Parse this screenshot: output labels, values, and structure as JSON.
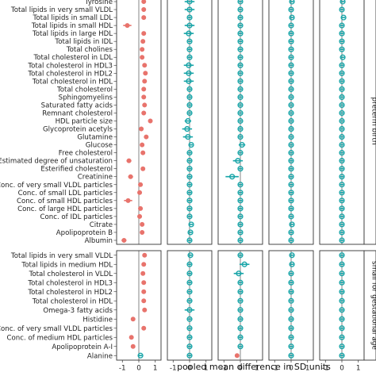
{
  "chart_data": {
    "type": "scatter",
    "xlabel": "pooled mean difference in SD units",
    "panel_xticks": [
      [
        "-1",
        "0",
        "1"
      ],
      [
        "-1",
        "0",
        "1"
      ],
      [
        "-1",
        "0",
        "1"
      ],
      [
        "-1",
        "0",
        "1"
      ],
      [
        "-1",
        "0",
        "1"
      ]
    ],
    "xlim": [
      -1.35,
      1.35
    ],
    "rows": [
      {
        "name": "preterm birth",
        "labels": [
          "Tyrosine",
          "Total lipids in very small VLDL",
          "Total lipids in small LDL",
          "Total lipids in small HDL",
          "Total lipids in large HDL",
          "Total lipids in IDL",
          "Total cholines",
          "Total cholesterol in LDL",
          "Total cholesterol in HDL3",
          "Total cholesterol in HDL2",
          "Total cholesterol in HDL",
          "Total cholesterol",
          "Sphingomyelins",
          "Saturated fatty acids",
          "Remnant cholesterol",
          "HDL particle size",
          "Glycoprotein acetyls",
          "Glutamine",
          "Glucose",
          "Free cholesterol",
          "Estimated degree of unsaturation",
          "Esterified cholesterol",
          "Creatinine",
          "Conc. of very small VLDL particles",
          "Conc. of small LDL particles",
          "Conc. of small HDL particles",
          "Conc. of large HDL particles",
          "Conc. of IDL particles",
          "Citrate",
          "Apolipoprotein B",
          "Albumin"
        ],
        "panel1": [
          0.3,
          0.3,
          0.3,
          -0.7,
          0.3,
          0.25,
          0.2,
          0.2,
          0.35,
          0.4,
          0.35,
          0.3,
          0.3,
          0.35,
          0.3,
          0.7,
          0.15,
          0.45,
          0.2,
          0.25,
          -0.6,
          0.25,
          -0.5,
          0.1,
          0.05,
          -0.65,
          0.1,
          0.05,
          0.2,
          0.2,
          -0.9
        ],
        "panel1_ci": [
          0.1,
          0.1,
          0.1,
          0.25,
          0.1,
          0.1,
          0.1,
          0.1,
          0.1,
          0.1,
          0.1,
          0.1,
          0.1,
          0.1,
          0.1,
          0.1,
          0.1,
          0.12,
          0.1,
          0.1,
          0.15,
          0.1,
          0.15,
          0.1,
          0.1,
          0.25,
          0.1,
          0.1,
          0.1,
          0.1,
          0.15
        ],
        "panel2": [
          0.0,
          0.0,
          0.0,
          0.0,
          -0.05,
          0.0,
          0.0,
          0.0,
          -0.05,
          -0.05,
          -0.05,
          0.0,
          0.0,
          0.0,
          0.0,
          -0.1,
          -0.15,
          -0.1,
          0.1,
          0.0,
          0.0,
          0.0,
          0.0,
          0.0,
          0.0,
          0.0,
          0.0,
          0.0,
          0.1,
          0.05,
          0.0
        ],
        "panel2_ci": [
          0.3,
          0.3,
          0.1,
          0.3,
          0.3,
          0.1,
          0.1,
          0.1,
          0.3,
          0.3,
          0.3,
          0.1,
          0.1,
          0.1,
          0.1,
          0.2,
          0.3,
          0.3,
          0.1,
          0.1,
          0.1,
          0.1,
          0.1,
          0.1,
          0.1,
          0.1,
          0.1,
          0.1,
          0.1,
          0.1,
          0.1
        ],
        "panel3": [
          0.0,
          0.0,
          0.0,
          0.0,
          0.0,
          0.0,
          0.0,
          0.0,
          0.0,
          0.0,
          0.0,
          0.0,
          0.0,
          0.0,
          0.0,
          0.0,
          0.0,
          0.0,
          0.1,
          0.0,
          -0.15,
          0.0,
          -0.5,
          0.0,
          0.0,
          0.0,
          0.0,
          0.0,
          0.0,
          0.0,
          0.0
        ],
        "panel3_ci": [
          0.1,
          0.1,
          0.1,
          0.1,
          0.1,
          0.1,
          0.1,
          0.1,
          0.1,
          0.1,
          0.1,
          0.1,
          0.1,
          0.1,
          0.1,
          0.1,
          0.1,
          0.1,
          0.2,
          0.1,
          0.3,
          0.1,
          0.4,
          0.1,
          0.1,
          0.1,
          0.1,
          0.1,
          0.1,
          0.1,
          0.1
        ],
        "panel4": [
          0.05,
          0.0,
          0.05,
          0.0,
          0.0,
          0.0,
          0.0,
          0.0,
          0.0,
          0.0,
          0.0,
          0.0,
          0.0,
          0.0,
          0.0,
          0.0,
          0.0,
          0.0,
          0.0,
          0.0,
          0.0,
          0.0,
          0.0,
          0.0,
          0.0,
          0.0,
          0.0,
          0.0,
          0.05,
          0.0,
          0.0
        ],
        "panel4_ci": [
          0.1,
          0.1,
          0.1,
          0.1,
          0.1,
          0.1,
          0.1,
          0.1,
          0.1,
          0.1,
          0.1,
          0.1,
          0.1,
          0.1,
          0.1,
          0.1,
          0.1,
          0.1,
          0.1,
          0.1,
          0.1,
          0.1,
          0.1,
          0.1,
          0.1,
          0.1,
          0.1,
          0.1,
          0.1,
          0.1,
          0.1
        ],
        "panel5": [
          0.05,
          0.0,
          0.1,
          0.0,
          0.0,
          0.0,
          0.0,
          0.05,
          0.0,
          0.0,
          0.0,
          0.0,
          0.0,
          0.0,
          0.0,
          0.0,
          0.0,
          0.0,
          0.0,
          0.0,
          0.0,
          0.0,
          0.0,
          0.0,
          0.0,
          0.0,
          0.0,
          0.0,
          0.0,
          0.0,
          0.0
        ],
        "panel5_ci": [
          0.1,
          0.1,
          0.1,
          0.1,
          0.1,
          0.1,
          0.1,
          0.1,
          0.1,
          0.1,
          0.1,
          0.1,
          0.1,
          0.1,
          0.1,
          0.1,
          0.1,
          0.1,
          0.1,
          0.1,
          0.1,
          0.1,
          0.1,
          0.1,
          0.1,
          0.1,
          0.1,
          0.1,
          0.1,
          0.1,
          0.1
        ]
      },
      {
        "name": "small for gestational age",
        "labels": [
          "Total lipids in very small VLDL",
          "Total lipids in medium HDL",
          "Total cholesterol in VLDL",
          "Total cholesterol in HDL3",
          "Total cholesterol in HDL2",
          "Total cholesterol in HDL",
          "Omega-3 fatty acids",
          "Histidine",
          "Conc. of very small VLDL particles",
          "Conc. of medium HDL particles",
          "Apolipoprotein A-I",
          "Alanine"
        ],
        "panel1": [
          0.35,
          0.3,
          0.25,
          0.3,
          0.3,
          0.3,
          0.35,
          -0.35,
          0.3,
          -0.45,
          -0.35,
          0.1
        ],
        "panel1_ci": [
          0.1,
          0.1,
          0.1,
          0.1,
          0.1,
          0.1,
          0.1,
          0.1,
          0.1,
          0.1,
          0.1,
          0.1
        ],
        "panel2": [
          0.05,
          0.0,
          0.0,
          0.0,
          0.0,
          0.0,
          0.0,
          0.0,
          0.0,
          0.0,
          0.0,
          0.0
        ],
        "panel2_ci": [
          0.1,
          0.1,
          0.1,
          0.1,
          0.1,
          0.1,
          0.3,
          0.1,
          0.1,
          0.1,
          0.1,
          0.1
        ],
        "panel3": [
          0.0,
          0.25,
          -0.1,
          0.0,
          0.0,
          0.0,
          0.0,
          0.0,
          0.0,
          0.0,
          0.0,
          -0.2
        ],
        "panel3_ci": [
          0.1,
          0.3,
          0.3,
          0.1,
          0.1,
          0.1,
          0.1,
          0.1,
          0.1,
          0.1,
          0.1,
          0.1
        ],
        "panel4": [
          0.05,
          0.05,
          0.0,
          0.0,
          0.0,
          0.0,
          0.0,
          0.0,
          0.0,
          0.0,
          0.0,
          0.0
        ],
        "panel4_ci": [
          0.1,
          0.1,
          0.1,
          0.1,
          0.1,
          0.1,
          0.1,
          0.1,
          0.1,
          0.1,
          0.1,
          0.1
        ],
        "panel5": [
          0.0,
          0.0,
          0.0,
          0.0,
          0.0,
          0.0,
          0.0,
          0.0,
          0.0,
          0.0,
          0.0,
          0.0
        ],
        "panel5_ci": [
          0.1,
          0.1,
          0.1,
          0.1,
          0.1,
          0.1,
          0.1,
          0.1,
          0.1,
          0.1,
          0.1,
          0.1
        ]
      }
    ],
    "colors": {
      "panel1": "#e8736c",
      "panel1_significant": "#18a5a8",
      "other_panels": "#18a5a8",
      "border": "#333333",
      "zero_line": "#333333"
    },
    "grid": false,
    "legend": "none"
  }
}
